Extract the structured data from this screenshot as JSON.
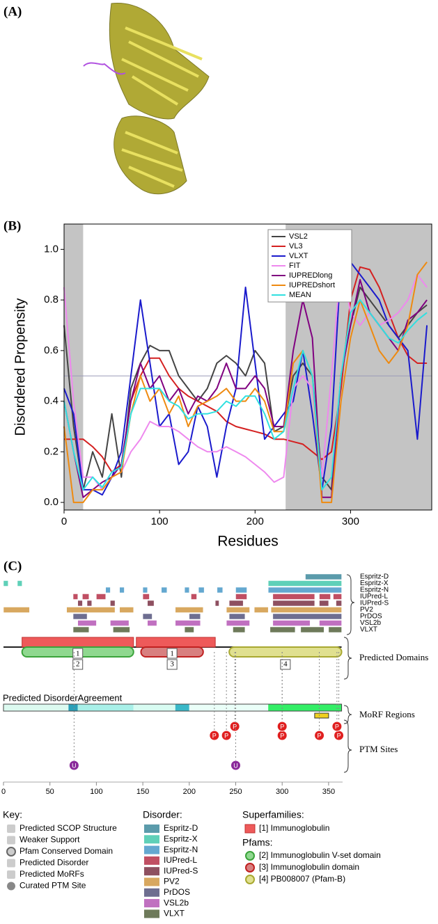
{
  "panel_labels": [
    "(A)",
    "(B)",
    "(C)"
  ],
  "chart_data": {
    "type": "line",
    "xlabel": "Residues",
    "ylabel": "Disordered Propensity",
    "x": [
      0,
      10,
      20,
      30,
      40,
      50,
      60,
      70,
      80,
      90,
      100,
      110,
      120,
      130,
      140,
      150,
      160,
      170,
      180,
      190,
      200,
      210,
      220,
      230,
      240,
      250,
      260,
      270,
      280,
      290,
      300,
      310,
      320,
      330,
      340,
      350,
      360,
      370,
      380
    ],
    "xlim": [
      0,
      385
    ],
    "ylim": [
      -0.03,
      1.1
    ],
    "xticks": [
      0,
      100,
      200,
      300
    ],
    "yticks": [
      {
        "value": 0,
        "label": "0.0"
      },
      0.2,
      0.4,
      0.6,
      0.8,
      {
        "value": 1,
        "label": "1.0"
      }
    ],
    "reference_line": 0.5,
    "shaded_regions": [
      [
        0,
        20
      ],
      [
        232,
        385
      ]
    ],
    "legend": "upper right",
    "series": [
      {
        "name": "VSL2",
        "color": "#444444",
        "values": [
          0.7,
          0.3,
          0.05,
          0.2,
          0.1,
          0.35,
          0.1,
          0.45,
          0.55,
          0.62,
          0.6,
          0.6,
          0.5,
          0.45,
          0.4,
          0.45,
          0.55,
          0.58,
          0.55,
          0.5,
          0.6,
          0.55,
          0.28,
          0.3,
          0.5,
          0.55,
          0.5,
          0.1,
          0.05,
          0.5,
          0.7,
          0.85,
          0.8,
          0.75,
          0.7,
          0.65,
          0.7,
          0.75,
          0.78
        ]
      },
      {
        "name": "VL3",
        "color": "#d42020",
        "values": [
          0.25,
          0.25,
          0.25,
          0.22,
          0.18,
          0.12,
          0.15,
          0.4,
          0.5,
          0.57,
          0.57,
          0.5,
          0.45,
          0.42,
          0.4,
          0.38,
          0.36,
          0.32,
          0.3,
          0.29,
          0.28,
          0.27,
          0.25,
          0.25,
          0.24,
          0.23,
          0.2,
          0.17,
          0.2,
          0.45,
          0.8,
          0.93,
          0.92,
          0.85,
          0.75,
          0.65,
          0.58,
          0.55,
          0.55
        ]
      },
      {
        "name": "VLXT",
        "color": "#1a1acc",
        "values": [
          0.45,
          0.35,
          0.05,
          0.05,
          0.03,
          0.1,
          0.2,
          0.5,
          0.8,
          0.55,
          0.3,
          0.35,
          0.15,
          0.2,
          0.38,
          0.3,
          0.1,
          0.3,
          0.45,
          0.85,
          0.55,
          0.25,
          0.3,
          0.35,
          0.4,
          0.6,
          0.35,
          0.05,
          0.3,
          0.95,
          0.95,
          0.9,
          0.85,
          0.8,
          0.7,
          0.65,
          0.6,
          0.25,
          0.7
        ]
      },
      {
        "name": "FIT",
        "color": "#ee88ee",
        "values": [
          0.85,
          0.4,
          0.1,
          0.1,
          0.05,
          0.1,
          0.12,
          0.2,
          0.25,
          0.32,
          0.3,
          0.3,
          0.28,
          0.25,
          0.22,
          0.2,
          0.2,
          0.22,
          0.2,
          0.18,
          0.15,
          0.12,
          0.08,
          0.1,
          0.45,
          0.5,
          0.45,
          0.1,
          0.5,
          0.95,
          0.75,
          0.7,
          0.75,
          0.7,
          0.72,
          0.75,
          0.8,
          0.9,
          0.85
        ]
      },
      {
        "name": "IUPREDlong",
        "color": "#800080",
        "values": [
          0.4,
          0.2,
          0.02,
          0.05,
          0.08,
          0.1,
          0.15,
          0.4,
          0.55,
          0.45,
          0.5,
          0.4,
          0.45,
          0.35,
          0.42,
          0.4,
          0.45,
          0.55,
          0.45,
          0.45,
          0.5,
          0.45,
          0.3,
          0.3,
          0.6,
          0.8,
          0.65,
          0.02,
          0.02,
          0.5,
          0.7,
          0.88,
          0.75,
          0.7,
          0.65,
          0.6,
          0.72,
          0.75,
          0.8
        ]
      },
      {
        "name": "IUPREDshort",
        "color": "#ee8a10",
        "values": [
          0.3,
          0,
          0,
          0.05,
          0.05,
          0.1,
          0.12,
          0.35,
          0.5,
          0.4,
          0.45,
          0.35,
          0.42,
          0.3,
          0.38,
          0.4,
          0.42,
          0.45,
          0.4,
          0.4,
          0.45,
          0.4,
          0.28,
          0.28,
          0.55,
          0.6,
          0.5,
          0,
          0,
          0.4,
          0.65,
          0.8,
          0.7,
          0.6,
          0.55,
          0.6,
          0.7,
          0.9,
          0.95
        ]
      },
      {
        "name": "MEAN",
        "color": "#30e0e0",
        "values": [
          0.4,
          0.2,
          0.05,
          0.1,
          0.06,
          0.12,
          0.14,
          0.35,
          0.45,
          0.45,
          0.45,
          0.4,
          0.38,
          0.33,
          0.35,
          0.35,
          0.36,
          0.4,
          0.38,
          0.42,
          0.42,
          0.35,
          0.25,
          0.28,
          0.45,
          0.6,
          0.5,
          0.05,
          0.1,
          0.5,
          0.75,
          0.8,
          0.75,
          0.7,
          0.65,
          0.63,
          0.68,
          0.72,
          0.75
        ]
      }
    ]
  },
  "diagram": {
    "xticks": [
      0,
      50,
      100,
      150,
      200,
      250,
      300,
      350
    ],
    "tracks": [
      {
        "name": "Espritz-D",
        "color": "#5b9bab",
        "segments": [
          [
            325,
            364
          ]
        ]
      },
      {
        "name": "Espritz-X",
        "color": "#5fd0b8",
        "segments": [
          [
            0,
            5
          ],
          [
            15,
            20
          ],
          [
            285,
            364
          ]
        ]
      },
      {
        "name": "Espritz-N",
        "color": "#64a8d0",
        "segments": [
          [
            110,
            115
          ],
          [
            125,
            130
          ],
          [
            150,
            155
          ],
          [
            170,
            176
          ],
          [
            195,
            200
          ],
          [
            210,
            216
          ],
          [
            230,
            236
          ],
          [
            250,
            262
          ],
          [
            285,
            364
          ]
        ]
      },
      {
        "name": "IUPred-L",
        "color": "#c04f63",
        "segments": [
          [
            75,
            80
          ],
          [
            85,
            92
          ],
          [
            100,
            110
          ],
          [
            150,
            157
          ],
          [
            202,
            208
          ],
          [
            250,
            262
          ],
          [
            290,
            335
          ],
          [
            340,
            352
          ],
          [
            355,
            364
          ]
        ]
      },
      {
        "name": "IUPred-S",
        "color": "#8e5060",
        "segments": [
          [
            80,
            85
          ],
          [
            90,
            95
          ],
          [
            115,
            120
          ],
          [
            155,
            162
          ],
          [
            228,
            232
          ],
          [
            243,
            258
          ],
          [
            290,
            335
          ],
          [
            340,
            350
          ],
          [
            358,
            364
          ]
        ]
      },
      {
        "name": "PV2",
        "color": "#d8a860",
        "segments": [
          [
            0,
            28
          ],
          [
            68,
            120
          ],
          [
            125,
            140
          ],
          [
            185,
            215
          ],
          [
            240,
            265
          ],
          [
            270,
            285
          ],
          [
            288,
            364
          ]
        ]
      },
      {
        "name": "PrDOS",
        "color": "#6e6e90",
        "segments": [
          [
            75,
            90
          ],
          [
            150,
            160
          ],
          [
            200,
            212
          ],
          [
            243,
            260
          ],
          [
            290,
            364
          ]
        ]
      },
      {
        "name": "VSL2b",
        "color": "#c070c0",
        "segments": [
          [
            80,
            100
          ],
          [
            115,
            135
          ],
          [
            155,
            165
          ],
          [
            185,
            212
          ],
          [
            240,
            265
          ],
          [
            290,
            330
          ],
          [
            340,
            364
          ]
        ]
      },
      {
        "name": "VLXT",
        "color": "#6e7a5a",
        "segments": [
          [
            75,
            92
          ],
          [
            118,
            136
          ],
          [
            195,
            205
          ],
          [
            247,
            260
          ],
          [
            287,
            314
          ],
          [
            320,
            345
          ],
          [
            350,
            364
          ]
        ]
      }
    ],
    "length": 364,
    "superfamilies": [
      {
        "start": 20,
        "end": 140,
        "label": "1"
      },
      {
        "start": 143,
        "end": 228,
        "label": "1"
      }
    ],
    "pfams": [
      {
        "start": 20,
        "end": 140,
        "label": "2",
        "color": "#8fd88f",
        "edge": "#3aa33a"
      },
      {
        "start": 148,
        "end": 215,
        "label": "3",
        "color": "#d88080",
        "edge": "#c02020"
      },
      {
        "start": 243,
        "end": 364,
        "label": "4",
        "color": "#e0e090",
        "edge": "#a8a830"
      }
    ],
    "agreement_title": "Predicted DisorderAgreement",
    "agreement": [
      [
        0,
        70,
        "#dcfaf0"
      ],
      [
        70,
        80,
        "#2aa0b8"
      ],
      [
        80,
        140,
        "#a8f0e8"
      ],
      [
        140,
        185,
        "#d8fcf2"
      ],
      [
        185,
        200,
        "#3ab8c8"
      ],
      [
        200,
        285,
        "#eafff8"
      ],
      [
        285,
        364,
        "#33ee66"
      ]
    ],
    "morfs": [
      [
        335,
        350
      ]
    ],
    "ptm": [
      {
        "pos": 227,
        "type": "P"
      },
      {
        "pos": 240,
        "type": "P"
      },
      {
        "pos": 249,
        "type": "P"
      },
      {
        "pos": 300,
        "type": "P"
      },
      {
        "pos": 300,
        "type": "P"
      },
      {
        "pos": 340,
        "type": "P"
      },
      {
        "pos": 361,
        "type": "P"
      },
      {
        "pos": 359,
        "type": "P"
      },
      {
        "pos": 76,
        "type": "U"
      },
      {
        "pos": 250,
        "type": "U"
      }
    ],
    "brace_labels": [
      "Predicted Domains",
      "MoRF Regions",
      "PTM Sites"
    ],
    "key_title": "Key:",
    "key_items": [
      "Predicted SCOP Structure",
      "Weaker Support",
      "Pfam Conserved Domain",
      "Predicted Disorder",
      "Predicted MoRFs",
      "Curated PTM Site"
    ],
    "disorder_title": "Disorder:",
    "superfamilies_title": "Superfamilies:",
    "superfamily_names": [
      "[1] Immunoglobulin"
    ],
    "pfams_title": "Pfams:",
    "pfam_names": [
      "[2] Immunoglobulin V-set domain",
      "[3] Immunoglobulin domain",
      "[4] PB008007 (Pfam-B)"
    ]
  }
}
